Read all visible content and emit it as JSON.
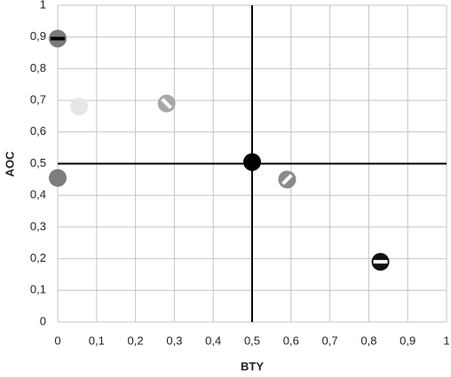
{
  "chart_data": {
    "type": "scatter",
    "x_label": "BTY",
    "y_label": "AOC",
    "x": [
      0,
      0.055,
      0.28,
      0,
      0.5,
      0.59,
      0.83
    ],
    "values": [
      0.895,
      0.68,
      0.69,
      0.455,
      0.505,
      0.45,
      0.19
    ],
    "colors": [
      "#7a7a7a",
      "#e6e6e6",
      "#a8a8a8",
      "#7d7d7d",
      "#000000",
      "#8a8a8a",
      "#111111"
    ],
    "stripes": [
      "horizontal",
      null,
      "diagonal-down",
      null,
      null,
      "diagonal-up",
      "horizontal"
    ],
    "stripe_colors": [
      "#000000",
      null,
      "#ffffff",
      null,
      null,
      "#ffffff",
      "#ffffff"
    ],
    "xlim": [
      0,
      1
    ],
    "ylim": [
      0,
      1
    ],
    "xticks": [
      0,
      {
        "value": 0.1,
        "label": "0,1"
      },
      {
        "value": 0.2,
        "label": "0,2"
      },
      {
        "value": 0.3,
        "label": "0,3"
      },
      {
        "value": 0.4,
        "label": "0,4"
      },
      {
        "value": 0.5,
        "label": "0,5"
      },
      {
        "value": 0.6,
        "label": "0,6"
      },
      {
        "value": 0.7,
        "label": "0,7"
      },
      {
        "value": 0.8,
        "label": "0,8"
      },
      {
        "value": 0.9,
        "label": "0,9"
      },
      1
    ],
    "yticks": [
      0,
      {
        "value": 0.1,
        "label": "0,1"
      },
      {
        "value": 0.2,
        "label": "0,2"
      },
      {
        "value": 0.3,
        "label": "0,3"
      },
      {
        "value": 0.4,
        "label": "0,4"
      },
      {
        "value": 0.5,
        "label": "0,5"
      },
      {
        "value": 0.6,
        "label": "0,6"
      },
      {
        "value": 0.7,
        "label": "0,7"
      },
      {
        "value": 0.8,
        "label": "0,8"
      },
      {
        "value": 0.9,
        "label": "0,9"
      },
      1
    ],
    "grid": true,
    "reference_lines": {
      "x": 0.5,
      "y": 0.5
    }
  }
}
